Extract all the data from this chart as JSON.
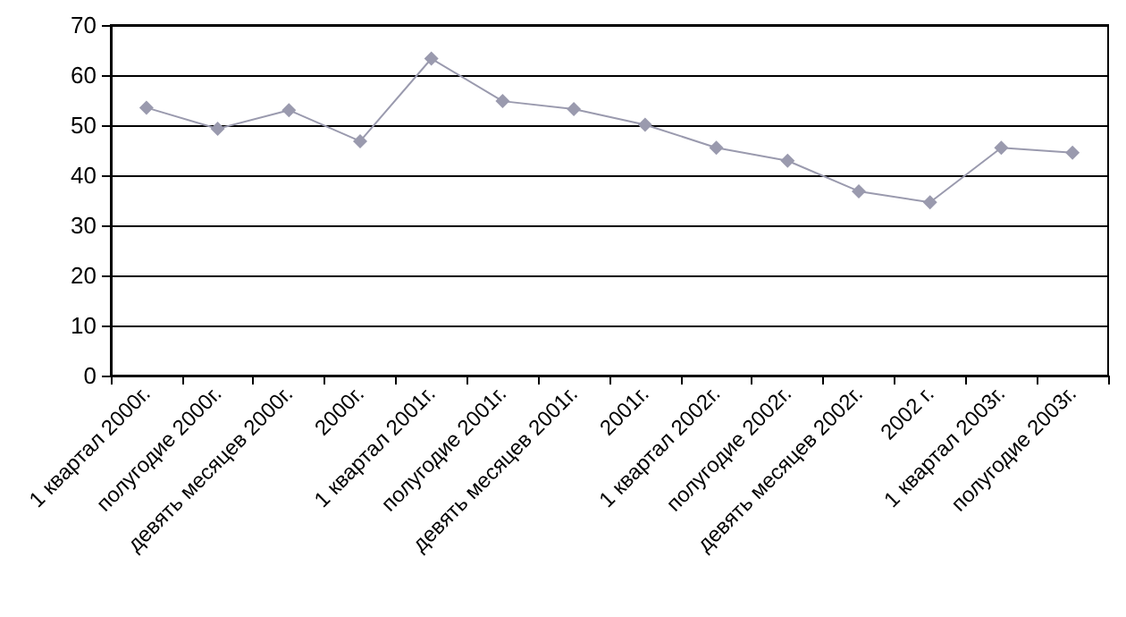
{
  "chart_data": {
    "type": "line",
    "categories": [
      "1 квартал 2000г.",
      "полугодие 2000г.",
      "девять месяцев 2000г.",
      "2000г.",
      "1 квартал 2001г.",
      "полугодие 2001г.",
      "девять месяцев 2001г.",
      "2001г.",
      "1 квартал 2002г.",
      "полугодие 2002г.",
      "девять месяцев 2002г.",
      "2002 г.",
      "1 квартал 2003г.",
      "полугодие 2003г."
    ],
    "values": [
      53.5,
      49.3,
      53,
      46.8,
      63.3,
      54.8,
      53.2,
      50.1,
      45.5,
      42.9,
      36.8,
      34.6,
      45.5,
      44.5
    ],
    "color": "#9a9aae",
    "ylim": [
      0,
      70
    ],
    "yticks": [
      0,
      10,
      20,
      30,
      40,
      50,
      60,
      70
    ],
    "grid": "y",
    "marker": "diamond",
    "line_style": "solid"
  }
}
